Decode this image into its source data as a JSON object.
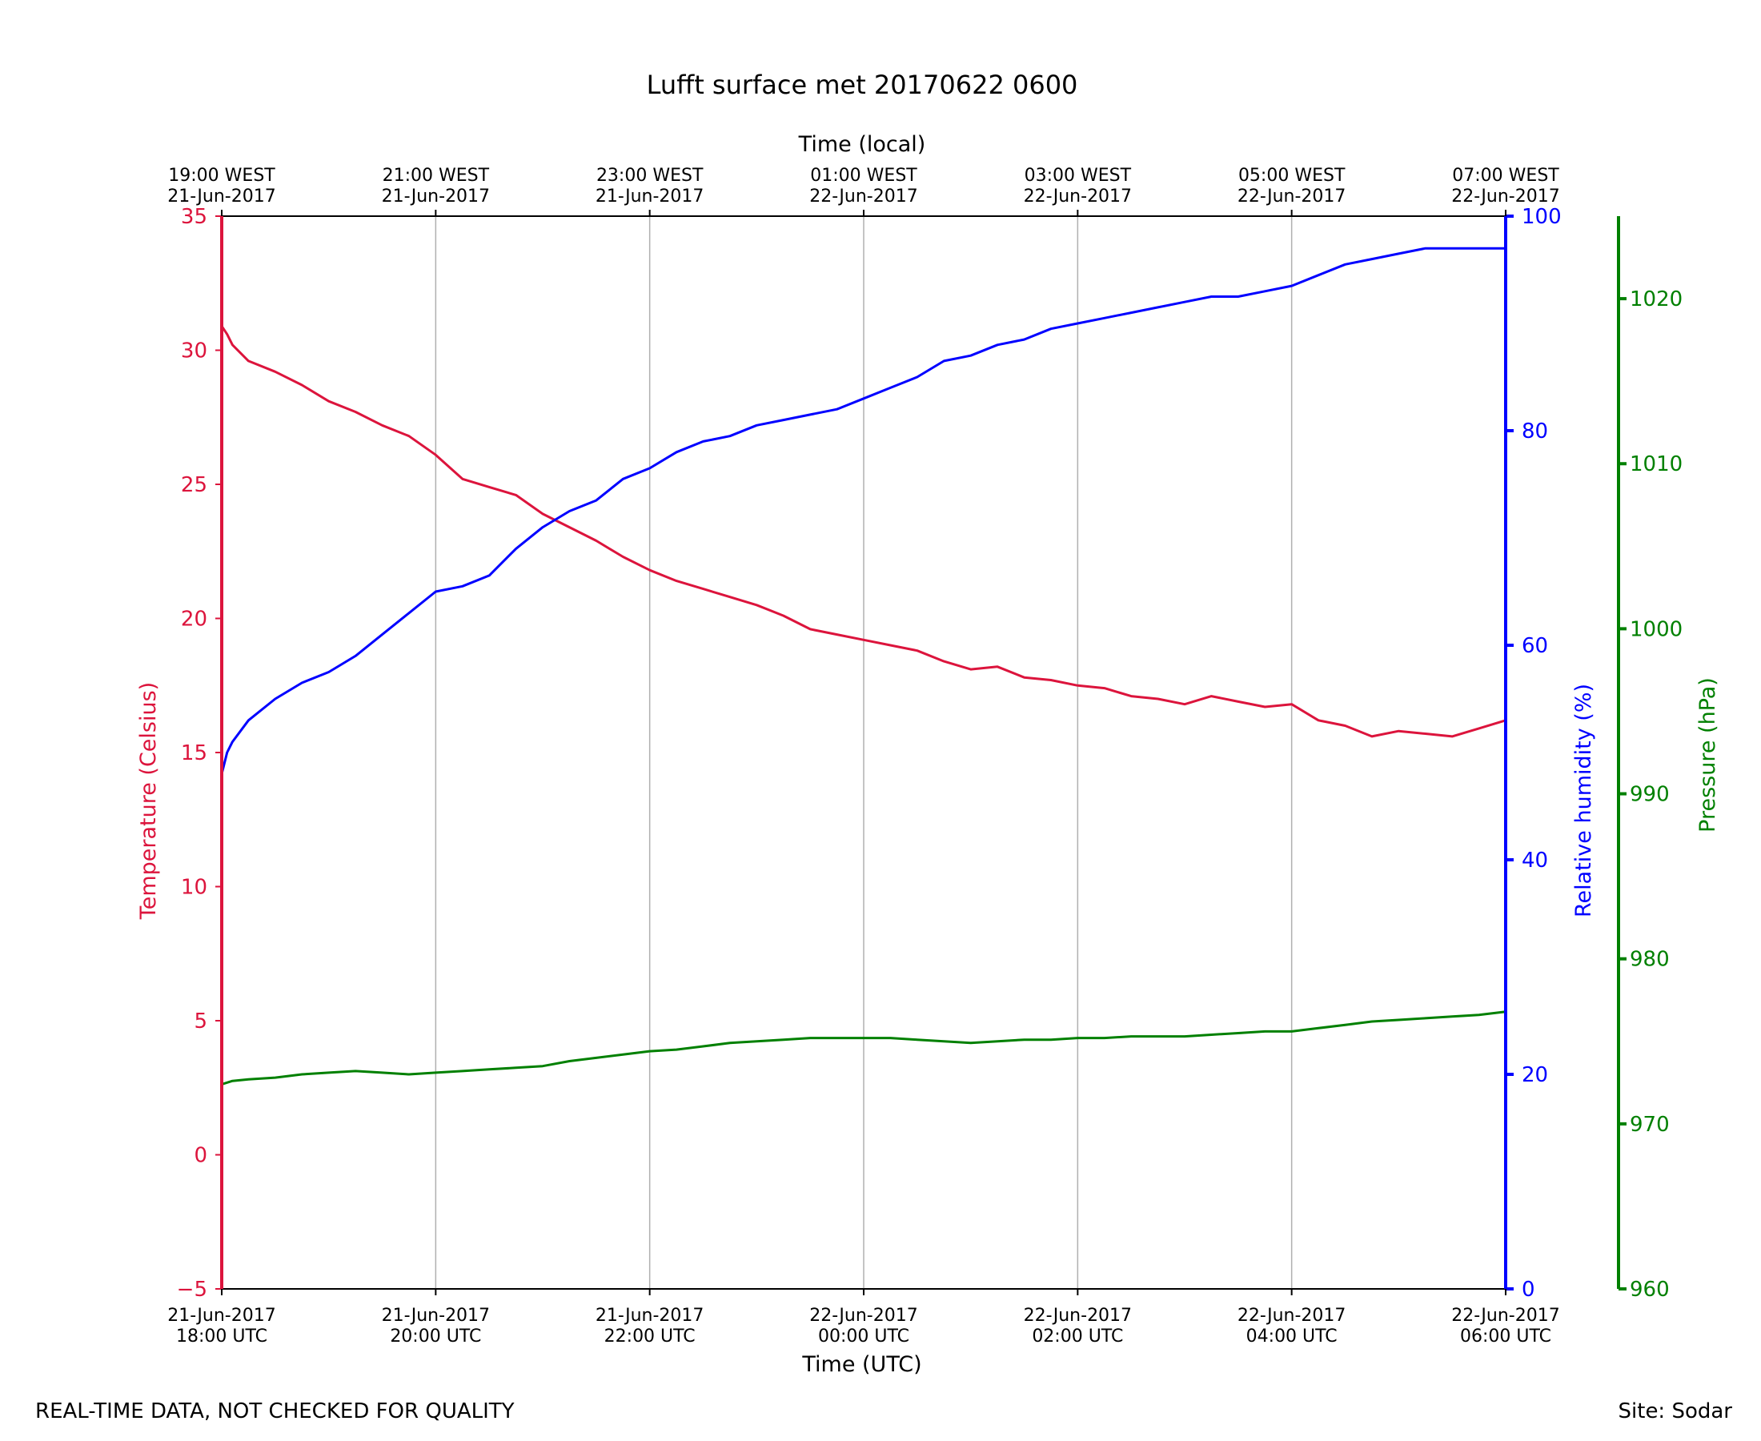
{
  "footer": {
    "left": "REAL-TIME DATA, NOT CHECKED FOR QUALITY",
    "right": "Site: Sodar"
  },
  "chart_data": {
    "type": "line",
    "title": "Lufft surface met 20170622 0600",
    "xlabel": "Time (UTC)",
    "x2label": "Time (local)",
    "grid": "vertical",
    "x_range": [
      "2017-06-21 18:00",
      "2017-06-22 06:00"
    ],
    "x_ticks": [
      {
        "utc": [
          "21-Jun-2017",
          "18:00 UTC"
        ],
        "local": [
          "19:00 WEST",
          "21-Jun-2017"
        ]
      },
      {
        "utc": [
          "21-Jun-2017",
          "20:00 UTC"
        ],
        "local": [
          "21:00 WEST",
          "21-Jun-2017"
        ]
      },
      {
        "utc": [
          "21-Jun-2017",
          "22:00 UTC"
        ],
        "local": [
          "23:00 WEST",
          "21-Jun-2017"
        ]
      },
      {
        "utc": [
          "22-Jun-2017",
          "00:00 UTC"
        ],
        "local": [
          "01:00 WEST",
          "22-Jun-2017"
        ]
      },
      {
        "utc": [
          "22-Jun-2017",
          "02:00 UTC"
        ],
        "local": [
          "03:00 WEST",
          "22-Jun-2017"
        ]
      },
      {
        "utc": [
          "22-Jun-2017",
          "04:00 UTC"
        ],
        "local": [
          "05:00 WEST",
          "22-Jun-2017"
        ]
      },
      {
        "utc": [
          "22-Jun-2017",
          "06:00 UTC"
        ],
        "local": [
          "07:00 WEST",
          "22-Jun-2017"
        ]
      }
    ],
    "axes": {
      "temperature": {
        "label": "Temperature (Celsius)",
        "range": [
          -5,
          35
        ],
        "ticks": [
          -5,
          0,
          5,
          10,
          15,
          20,
          25,
          30,
          35
        ],
        "tick_labels": [
          "−5",
          "0",
          "5",
          "10",
          "15",
          "20",
          "25",
          "30",
          "35"
        ],
        "color": "#dc143c",
        "side": "left"
      },
      "humidity": {
        "label": "Relative humidity (%)",
        "range": [
          0,
          100
        ],
        "ticks": [
          0,
          20,
          40,
          60,
          80,
          100
        ],
        "tick_labels": [
          "0",
          "20",
          "40",
          "60",
          "80",
          "100"
        ],
        "color": "#0000ff",
        "side": "right"
      },
      "pressure": {
        "label": "Pressure (hPa)",
        "range": [
          960,
          1025
        ],
        "ticks": [
          960,
          970,
          980,
          990,
          1000,
          1010,
          1020
        ],
        "tick_labels": [
          "960",
          "970",
          "980",
          "990",
          "1000",
          "1010",
          "1020"
        ],
        "color": "#008000",
        "side": "right-outer"
      }
    },
    "x_hours": [
      0,
      0.05,
      0.1,
      0.25,
      0.5,
      0.75,
      1.0,
      1.25,
      1.5,
      1.75,
      2.0,
      2.25,
      2.5,
      2.75,
      3.0,
      3.25,
      3.5,
      3.75,
      4.0,
      4.25,
      4.5,
      4.75,
      5.0,
      5.25,
      5.5,
      5.75,
      6.0,
      6.25,
      6.5,
      6.75,
      7.0,
      7.25,
      7.5,
      7.75,
      8.0,
      8.25,
      8.5,
      8.75,
      9.0,
      9.25,
      9.5,
      9.75,
      10.0,
      10.25,
      10.5,
      10.75,
      11.0,
      11.25,
      11.5,
      11.75,
      12.0
    ],
    "x_dates": [
      "2017-06-21 18:00",
      "2017-06-21 18:03",
      "2017-06-21 18:06",
      "2017-06-21 18:15",
      "2017-06-21 18:30",
      "2017-06-21 18:45",
      "2017-06-21 19:00",
      "2017-06-21 19:15",
      "2017-06-21 19:30",
      "2017-06-21 19:45",
      "2017-06-21 20:00",
      "2017-06-21 20:15",
      "2017-06-21 20:30",
      "2017-06-21 20:45",
      "2017-06-21 21:00",
      "2017-06-21 21:15",
      "2017-06-21 21:30",
      "2017-06-21 21:45",
      "2017-06-21 22:00",
      "2017-06-21 22:15",
      "2017-06-21 22:30",
      "2017-06-21 22:45",
      "2017-06-21 23:00",
      "2017-06-21 23:15",
      "2017-06-21 23:30",
      "2017-06-21 23:45",
      "2017-06-22 00:00",
      "2017-06-22 00:15",
      "2017-06-22 00:30",
      "2017-06-22 00:45",
      "2017-06-22 01:00",
      "2017-06-22 01:15",
      "2017-06-22 01:30",
      "2017-06-22 01:45",
      "2017-06-22 02:00",
      "2017-06-22 02:15",
      "2017-06-22 02:30",
      "2017-06-22 02:45",
      "2017-06-22 03:00",
      "2017-06-22 03:15",
      "2017-06-22 03:30",
      "2017-06-22 03:45",
      "2017-06-22 04:00",
      "2017-06-22 04:15",
      "2017-06-22 04:30",
      "2017-06-22 04:45",
      "2017-06-22 05:00",
      "2017-06-22 05:15",
      "2017-06-22 05:30",
      "2017-06-22 05:45",
      "2017-06-22 06:00"
    ],
    "series": [
      {
        "name": "Temperature (Celsius)",
        "axis": "temperature",
        "color": "#dc143c",
        "values": [
          30.9,
          30.6,
          30.2,
          29.6,
          29.2,
          28.7,
          28.1,
          27.7,
          27.2,
          26.8,
          26.1,
          25.2,
          24.9,
          24.6,
          23.9,
          23.4,
          22.9,
          22.3,
          21.8,
          21.4,
          21.1,
          20.8,
          20.5,
          20.1,
          19.6,
          19.4,
          19.2,
          19.0,
          18.8,
          18.4,
          18.1,
          18.2,
          17.8,
          17.7,
          17.5,
          17.4,
          17.1,
          17.0,
          16.8,
          17.1,
          16.9,
          16.7,
          16.8,
          16.2,
          16.0,
          15.6,
          15.8,
          15.7,
          15.6,
          15.9,
          16.2
        ]
      },
      {
        "name": "Relative humidity (%)",
        "axis": "humidity",
        "color": "#0000ff",
        "values": [
          48,
          50,
          51,
          53,
          55,
          56.5,
          57.5,
          59,
          61,
          63,
          65,
          65.5,
          66.5,
          69,
          71,
          72.5,
          73.5,
          75.5,
          76.5,
          78,
          79,
          79.5,
          80.5,
          81,
          81.5,
          82,
          83,
          84,
          85,
          86.5,
          87,
          88,
          88.5,
          89.5,
          90,
          90.5,
          91,
          91.5,
          92,
          92.5,
          92.5,
          93,
          93.5,
          94.5,
          95.5,
          96,
          96.5,
          97,
          97,
          97,
          97
        ]
      },
      {
        "name": "Pressure (hPa)",
        "axis": "pressure",
        "color": "#008000",
        "values": [
          972.4,
          972.5,
          972.6,
          972.7,
          972.8,
          973.0,
          973.1,
          973.2,
          973.1,
          973.0,
          973.1,
          973.2,
          973.3,
          973.4,
          973.5,
          973.8,
          974.0,
          974.2,
          974.4,
          974.5,
          974.7,
          974.9,
          975.0,
          975.1,
          975.2,
          975.2,
          975.2,
          975.2,
          975.1,
          975.0,
          974.9,
          975.0,
          975.1,
          975.1,
          975.2,
          975.2,
          975.3,
          975.3,
          975.3,
          975.4,
          975.5,
          975.6,
          975.6,
          975.8,
          976.0,
          976.2,
          976.3,
          976.4,
          976.5,
          976.6,
          976.8
        ]
      }
    ]
  }
}
